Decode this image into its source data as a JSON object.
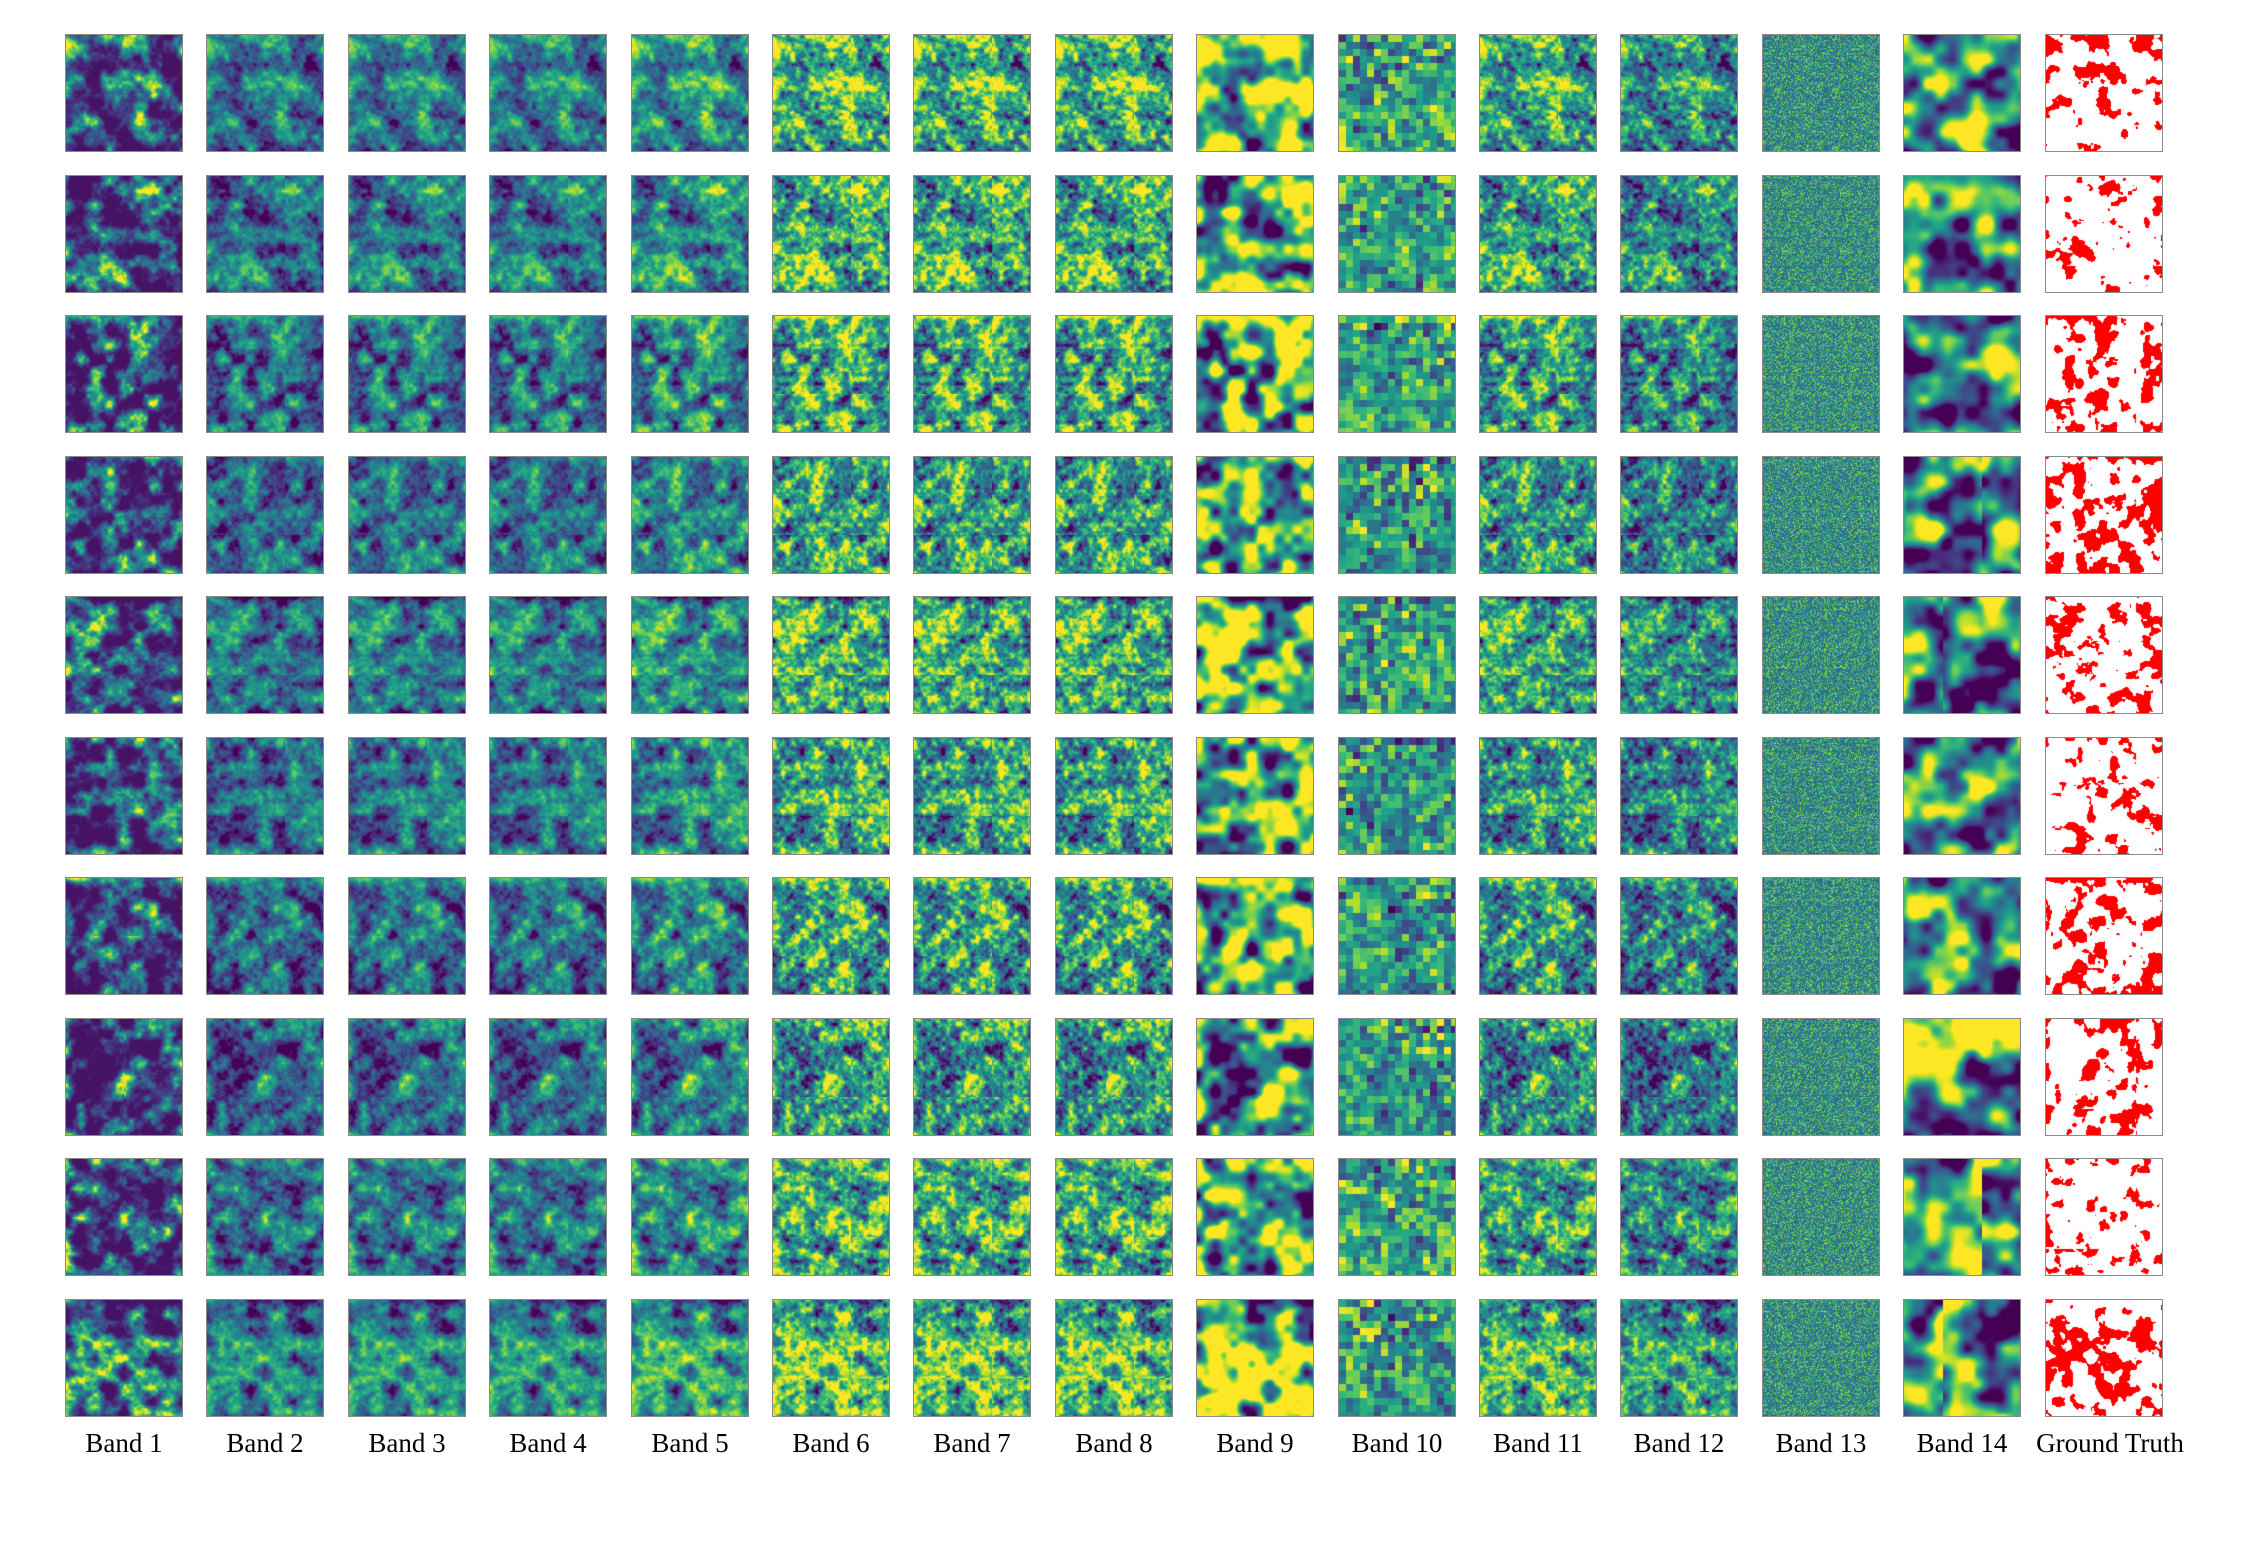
{
  "figure": {
    "column_labels": [
      "Band 1",
      "Band 2",
      "Band 3",
      "Band 4",
      "Band 5",
      "Band 6",
      "Band 7",
      "Band 8",
      "Band 9",
      "Band 10",
      "Band 11",
      "Band 12",
      "Band 13",
      "Band 14",
      "Ground Truth"
    ],
    "rows": 10,
    "colormap": "viridis",
    "ground_truth_color": "#ff0000",
    "background": "#ffffff"
  }
}
